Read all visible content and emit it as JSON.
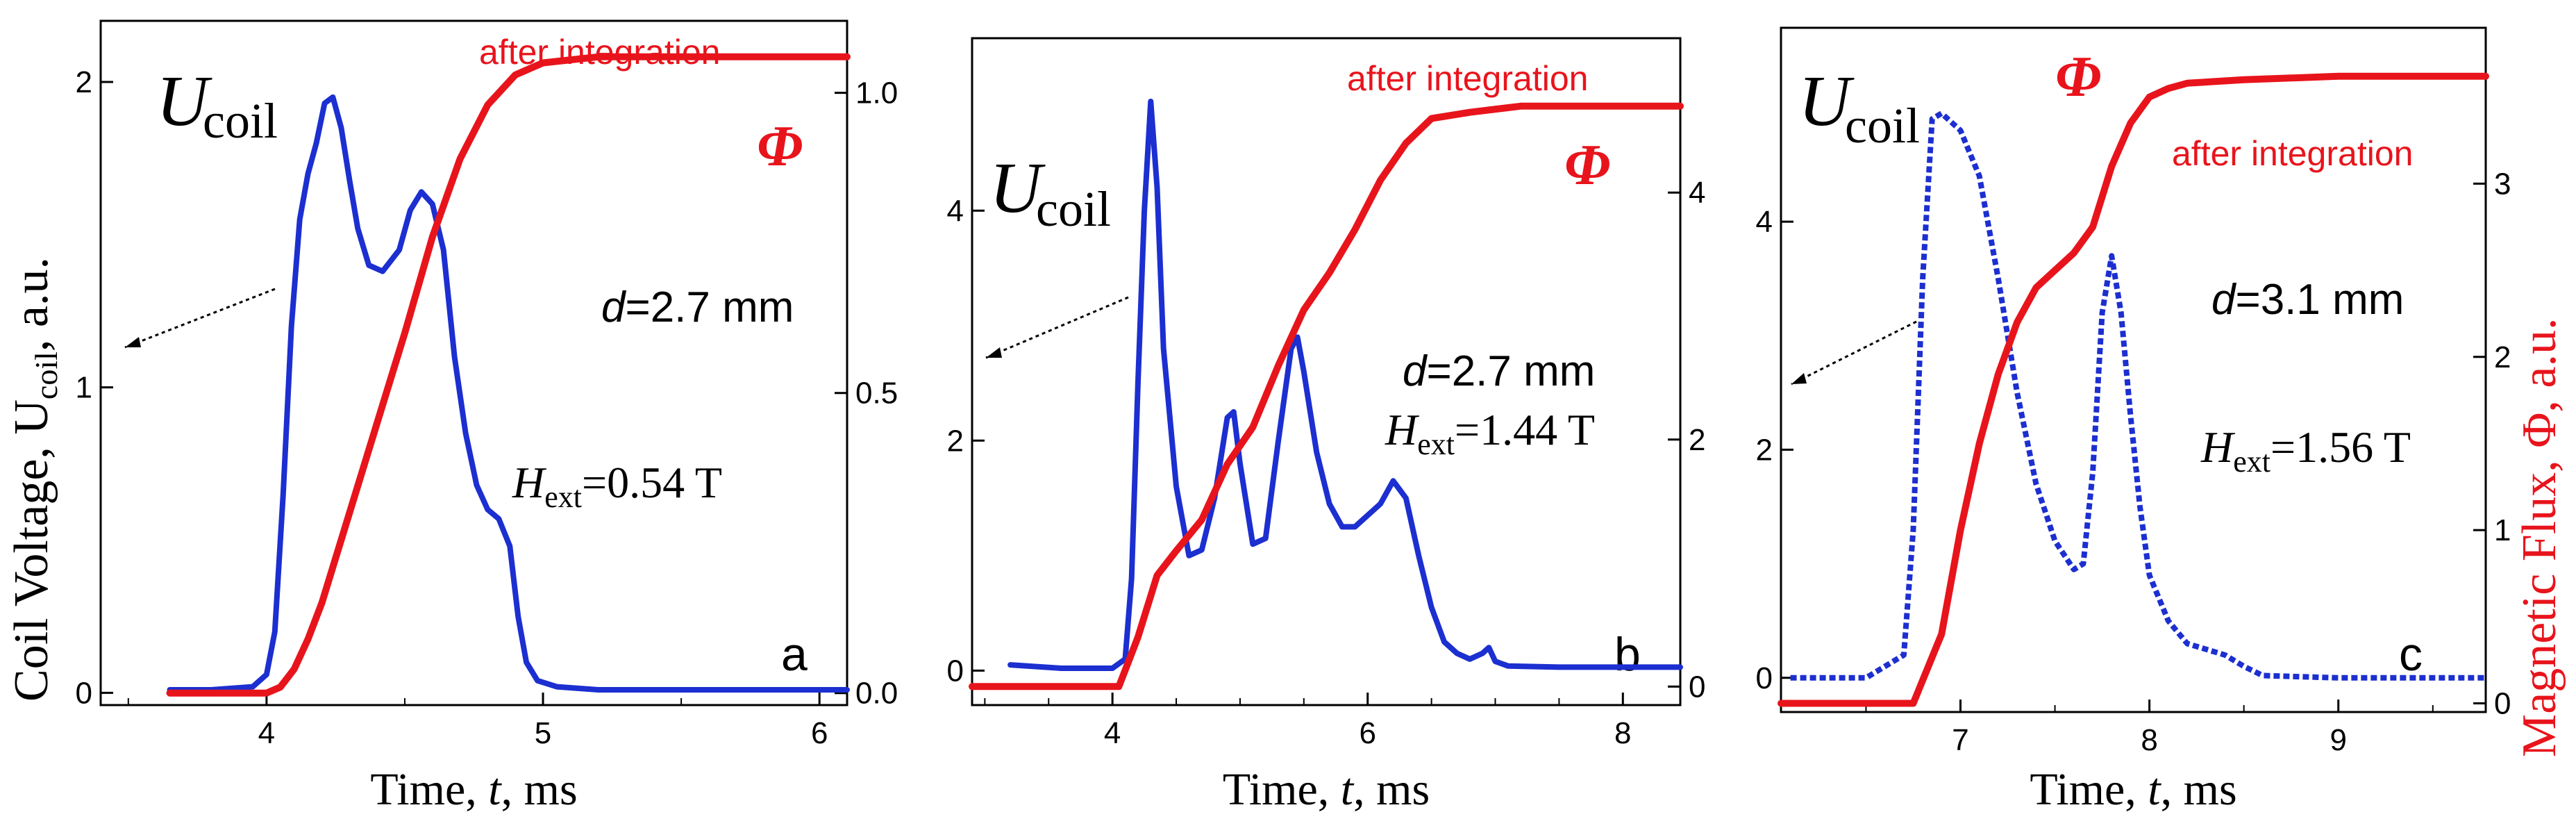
{
  "figure": {
    "y_left_label": "Coil Voltage, U",
    "y_left_sub": "coil",
    "y_left_tail": ", a.u.",
    "y_right_label": "Magnetic Flux, Φ, a.u.",
    "colors": {
      "voltage": "#1c2fd0",
      "flux": "#e8141c",
      "text": "#000000"
    }
  },
  "chart_data": [
    {
      "type": "line",
      "panel_label": "a",
      "xlabel": "Time, t, ms",
      "xlim": [
        3.4,
        6.1
      ],
      "xticks": [
        4,
        5,
        6
      ],
      "ylim_left": [
        -0.04,
        2.2
      ],
      "yticks_left": [
        0,
        1,
        2
      ],
      "ylim_right": [
        -0.02,
        1.12
      ],
      "yticks_right": [
        0.0,
        0.5,
        1.0
      ],
      "ytick_labels_right": [
        "0.0",
        "0.5",
        "1.0"
      ],
      "ucoil_label": "U",
      "ucoil_sub": "coil",
      "phi_label": "Φ",
      "after_label": "after integration",
      "d_label": "=2.7 mm",
      "h_value": "=0.54 T",
      "series": [
        {
          "name": "U_coil",
          "axis": "left",
          "x": [
            3.65,
            3.8,
            3.95,
            4.0,
            4.03,
            4.06,
            4.09,
            4.12,
            4.15,
            4.18,
            4.21,
            4.24,
            4.27,
            4.3,
            4.33,
            4.37,
            4.42,
            4.48,
            4.52,
            4.56,
            4.6,
            4.64,
            4.68,
            4.72,
            4.76,
            4.8,
            4.84,
            4.88,
            4.91,
            4.94,
            4.98,
            5.05,
            5.2,
            5.5,
            6.1
          ],
          "y": [
            0.01,
            0.01,
            0.02,
            0.06,
            0.2,
            0.65,
            1.2,
            1.55,
            1.7,
            1.8,
            1.93,
            1.95,
            1.85,
            1.68,
            1.52,
            1.4,
            1.38,
            1.45,
            1.58,
            1.64,
            1.6,
            1.45,
            1.1,
            0.85,
            0.68,
            0.6,
            0.57,
            0.48,
            0.25,
            0.1,
            0.04,
            0.02,
            0.01,
            0.01,
            0.01
          ]
        },
        {
          "name": "Φ",
          "axis": "right",
          "x": [
            3.65,
            4.0,
            4.05,
            4.1,
            4.15,
            4.2,
            4.3,
            4.4,
            4.5,
            4.6,
            4.7,
            4.8,
            4.9,
            5.0,
            5.2,
            5.5,
            6.1
          ],
          "y": [
            0.0,
            0.0,
            0.01,
            0.04,
            0.09,
            0.15,
            0.3,
            0.45,
            0.6,
            0.76,
            0.89,
            0.98,
            1.03,
            1.05,
            1.06,
            1.06,
            1.06
          ]
        }
      ]
    },
    {
      "type": "line",
      "panel_label": "b",
      "xlabel": "Time, t, ms",
      "xlim": [
        2.9,
        8.45
      ],
      "xticks": [
        4,
        6,
        8
      ],
      "ylim_left": [
        -0.3,
        5.5
      ],
      "yticks_left": [
        0,
        2,
        4
      ],
      "ylim_right": [
        -0.15,
        5.25
      ],
      "yticks_right": [
        0,
        2,
        4
      ],
      "ytick_labels_right": [
        "0",
        "2",
        "4"
      ],
      "ucoil_label": "U",
      "ucoil_sub": "coil",
      "phi_label": "Φ",
      "after_label": "after integration",
      "d_label": "=2.7 mm",
      "h_value": "=1.44 T",
      "series": [
        {
          "name": "U_coil",
          "axis": "left",
          "x": [
            3.2,
            3.6,
            4.0,
            4.1,
            4.15,
            4.2,
            4.25,
            4.3,
            4.35,
            4.4,
            4.5,
            4.6,
            4.7,
            4.8,
            4.9,
            4.95,
            5.0,
            5.1,
            5.2,
            5.3,
            5.4,
            5.45,
            5.5,
            5.6,
            5.7,
            5.8,
            5.9,
            6.0,
            6.1,
            6.2,
            6.3,
            6.4,
            6.5,
            6.6,
            6.7,
            6.8,
            6.9,
            6.95,
            7.0,
            7.1,
            7.5,
            8.45
          ],
          "y": [
            0.05,
            0.02,
            0.02,
            0.1,
            0.8,
            2.5,
            4.0,
            4.95,
            4.2,
            2.8,
            1.6,
            1.0,
            1.05,
            1.5,
            2.2,
            2.25,
            1.8,
            1.1,
            1.15,
            2.0,
            2.8,
            2.9,
            2.6,
            1.9,
            1.45,
            1.25,
            1.25,
            1.35,
            1.45,
            1.65,
            1.5,
            1.0,
            0.55,
            0.25,
            0.15,
            0.1,
            0.15,
            0.2,
            0.08,
            0.04,
            0.03,
            0.03
          ]
        },
        {
          "name": "Φ",
          "axis": "right",
          "x": [
            2.9,
            4.05,
            4.2,
            4.35,
            4.5,
            4.7,
            4.9,
            5.1,
            5.3,
            5.5,
            5.7,
            5.9,
            6.1,
            6.3,
            6.5,
            6.8,
            7.2,
            8.0,
            8.45
          ],
          "y": [
            0.0,
            0.0,
            0.4,
            0.9,
            1.1,
            1.35,
            1.8,
            2.1,
            2.6,
            3.05,
            3.35,
            3.7,
            4.1,
            4.4,
            4.6,
            4.65,
            4.7,
            4.7,
            4.7
          ]
        }
      ]
    },
    {
      "type": "line",
      "panel_label": "c",
      "xlabel": "Time, t, ms",
      "xlim": [
        6.05,
        9.78
      ],
      "xticks": [
        7,
        8,
        9
      ],
      "ylim_left": [
        -0.3,
        5.7
      ],
      "yticks_left": [
        0,
        2,
        4
      ],
      "ylim_right": [
        -0.05,
        3.9
      ],
      "yticks_right": [
        0,
        1,
        2,
        3
      ],
      "ytick_labels_right": [
        "0",
        "1",
        "2",
        "3"
      ],
      "ucoil_label": "U",
      "ucoil_sub": "coil",
      "phi_label": "Φ",
      "after_label": "after integration",
      "d_label": "=3.1 mm",
      "h_value": "=1.56 T",
      "series": [
        {
          "name": "U_coil",
          "axis": "left",
          "style": "dotted",
          "x": [
            6.1,
            6.5,
            6.7,
            6.75,
            6.8,
            6.85,
            6.9,
            7.0,
            7.1,
            7.2,
            7.3,
            7.4,
            7.5,
            7.6,
            7.65,
            7.7,
            7.75,
            7.8,
            7.85,
            7.9,
            7.95,
            8.0,
            8.1,
            8.2,
            8.3,
            8.4,
            8.5,
            8.6,
            9.0,
            9.78
          ],
          "y": [
            0.0,
            0.0,
            0.2,
            1.3,
            3.5,
            4.9,
            4.95,
            4.8,
            4.4,
            3.5,
            2.5,
            1.7,
            1.2,
            0.95,
            1.0,
            1.8,
            3.2,
            3.7,
            3.2,
            2.3,
            1.5,
            0.9,
            0.5,
            0.3,
            0.25,
            0.2,
            0.1,
            0.02,
            0.0,
            0.0
          ]
        },
        {
          "name": "Φ",
          "axis": "right",
          "x": [
            6.05,
            6.75,
            6.9,
            7.0,
            7.1,
            7.2,
            7.3,
            7.4,
            7.5,
            7.6,
            7.7,
            7.8,
            7.9,
            8.0,
            8.1,
            8.2,
            8.5,
            9.0,
            9.78
          ],
          "y": [
            0.0,
            0.0,
            0.4,
            1.0,
            1.5,
            1.9,
            2.2,
            2.4,
            2.5,
            2.6,
            2.75,
            3.1,
            3.35,
            3.5,
            3.55,
            3.58,
            3.6,
            3.62,
            3.62
          ]
        }
      ]
    }
  ]
}
